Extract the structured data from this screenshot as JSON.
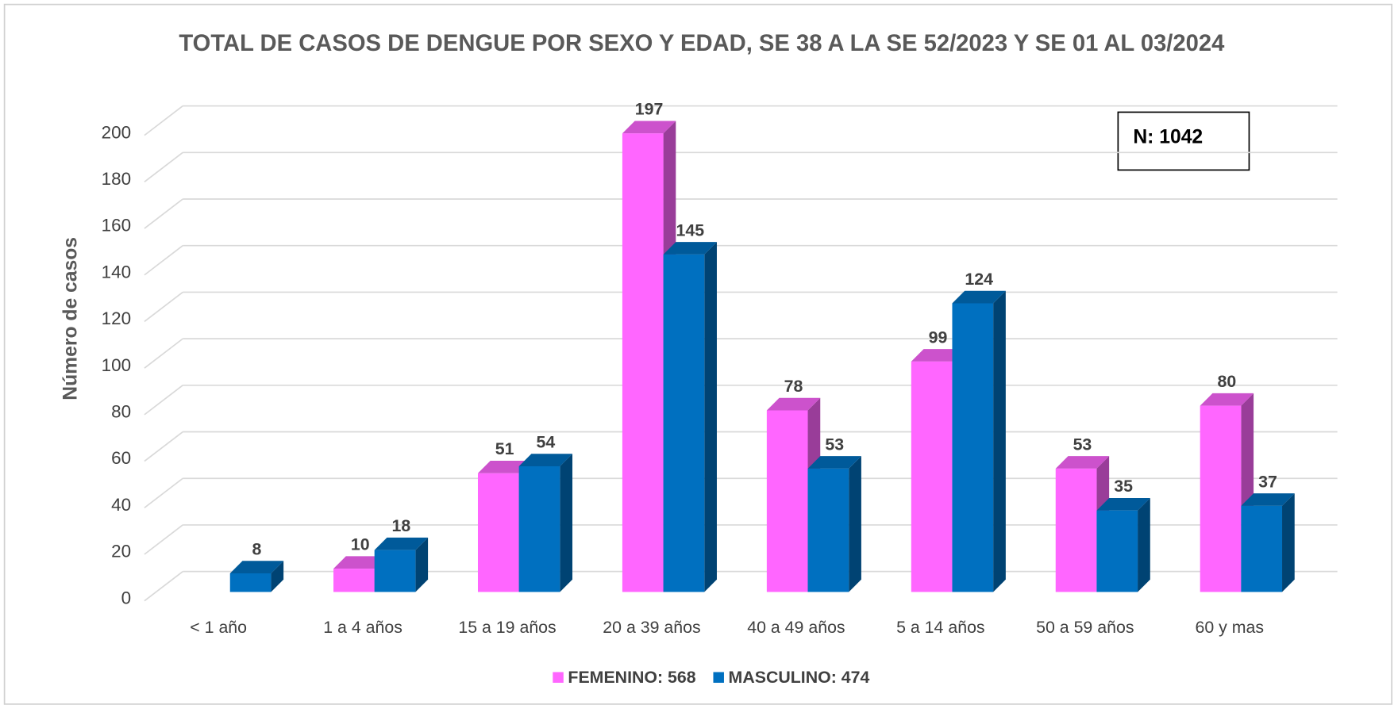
{
  "chart_data": {
    "type": "bar3d",
    "title": "TOTAL DE CASOS DE DENGUE POR SEXO Y EDAD, SE 38 A LA SE 52/2023 Y SE 01 AL 03/2024",
    "y_label": "Número de casos",
    "annotation": "N: 1042",
    "categories": [
      "< 1 año",
      "1 a 4 años",
      "15 a 19 años",
      "20 a 39 años",
      "40 a 49 años",
      "5 a 14 años",
      "50 a 59 años",
      "60 y mas"
    ],
    "series": [
      {
        "name": "FEMENINO: 568",
        "color": "#ff66ff",
        "values": [
          null,
          10,
          51,
          197,
          78,
          99,
          53,
          80
        ]
      },
      {
        "name": "MASCULINO: 474",
        "color": "#0070c0",
        "values": [
          8,
          18,
          54,
          145,
          53,
          124,
          35,
          37
        ]
      }
    ],
    "ylim": [
      0,
      200
    ],
    "yticks": [
      0,
      20,
      40,
      60,
      80,
      100,
      120,
      140,
      160,
      180,
      200
    ],
    "grid": true,
    "legend": "bottom"
  }
}
